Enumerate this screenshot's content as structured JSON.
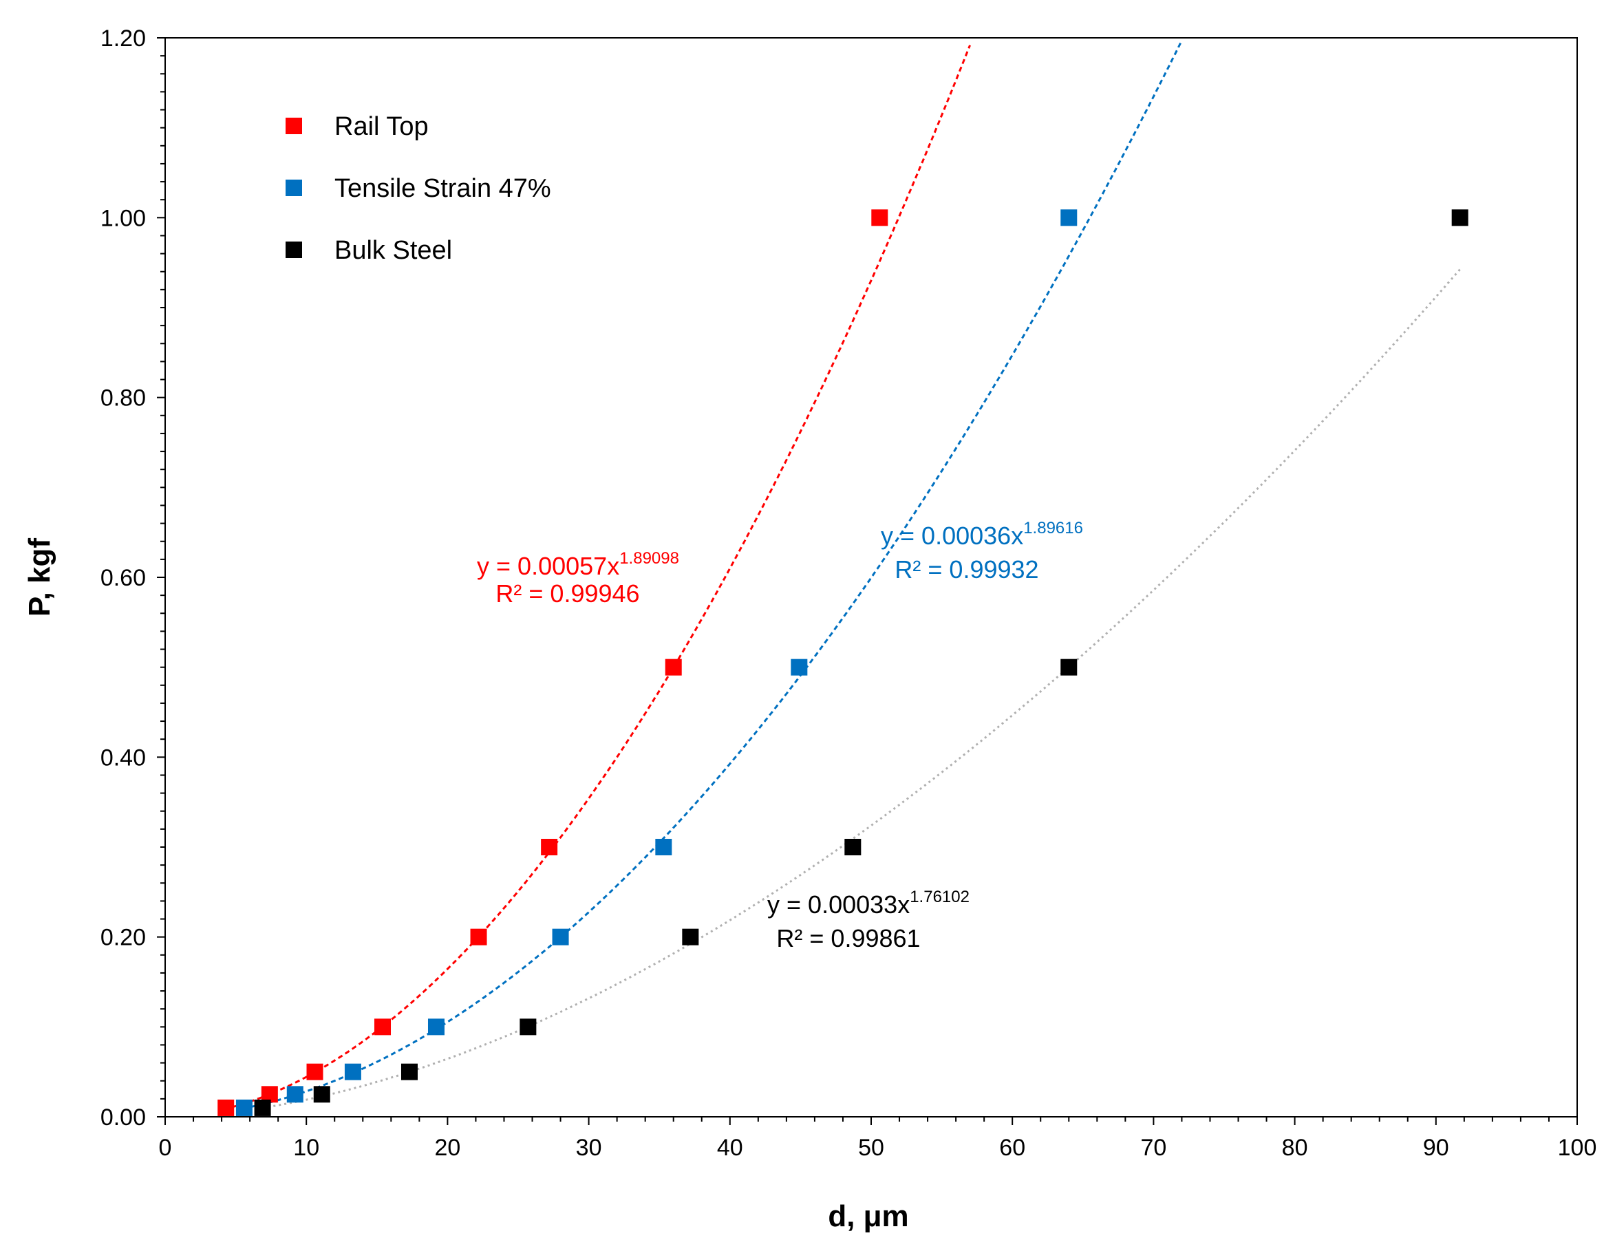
{
  "chart_data": {
    "type": "scatter",
    "title": "",
    "xlabel": "d, μm",
    "ylabel": "P, kgf",
    "xlim": [
      0,
      100
    ],
    "ylim": [
      0,
      1.2
    ],
    "grid": false,
    "legend_position": "top-left",
    "x_ticks": [
      0,
      10,
      20,
      30,
      40,
      50,
      60,
      70,
      80,
      90,
      100
    ],
    "y_ticks": [
      0,
      0.2,
      0.4,
      0.6,
      0.8,
      1.0,
      1.2
    ],
    "x_tick_labels": [
      "0",
      "10",
      "20",
      "30",
      "40",
      "50",
      "60",
      "70",
      "80",
      "90",
      "100"
    ],
    "y_tick_labels": [
      "0.00",
      "0.20",
      "0.40",
      "0.60",
      "0.80",
      "1.00",
      "1.20"
    ],
    "series": [
      {
        "name": "Rail Top",
        "color": "#ff0000",
        "marker": "square",
        "x": [
          4.3,
          7.4,
          10.6,
          15.4,
          22.2,
          27.2,
          36.0,
          50.6
        ],
        "y": [
          0.01,
          0.025,
          0.05,
          0.1,
          0.2,
          0.3,
          0.5,
          1.0
        ],
        "trendline": {
          "type": "power",
          "a": 0.00057,
          "b": 1.89098,
          "style": "dashed",
          "x_range": [
            4.3,
            57
          ],
          "eq_prefix": "y = 0.00057x",
          "eq_exponent": "1.89098",
          "r2_text": "R² = 0.99946"
        }
      },
      {
        "name": "Tensile Strain 47%",
        "color": "#0070c0",
        "marker": "square",
        "x": [
          5.6,
          9.2,
          13.3,
          19.2,
          28.0,
          35.3,
          44.9,
          64.0
        ],
        "y": [
          0.01,
          0.025,
          0.05,
          0.1,
          0.2,
          0.3,
          0.5,
          1.0
        ],
        "trendline": {
          "type": "power",
          "a": 0.00036,
          "b": 1.89616,
          "style": "dashed",
          "x_range": [
            5.6,
            72
          ],
          "eq_prefix": "y = 0.00036x",
          "eq_exponent": "1.89616",
          "r2_text": "R² = 0.99932"
        }
      },
      {
        "name": "Bulk Steel",
        "color": "#000000",
        "marker": "square",
        "x": [
          6.9,
          11.1,
          17.3,
          25.7,
          37.2,
          48.7,
          64.0,
          91.7
        ],
        "y": [
          0.01,
          0.025,
          0.05,
          0.1,
          0.2,
          0.3,
          0.5,
          1.0
        ],
        "trendline": {
          "type": "power",
          "a": 0.00033,
          "b": 1.76102,
          "style": "dotted",
          "trend_color": "#b0b0b0",
          "x_range": [
            6.9,
            91.7
          ],
          "eq_prefix": "y = 0.00033x",
          "eq_exponent": "1.76102",
          "r2_text": "R² = 0.99861"
        }
      }
    ]
  }
}
